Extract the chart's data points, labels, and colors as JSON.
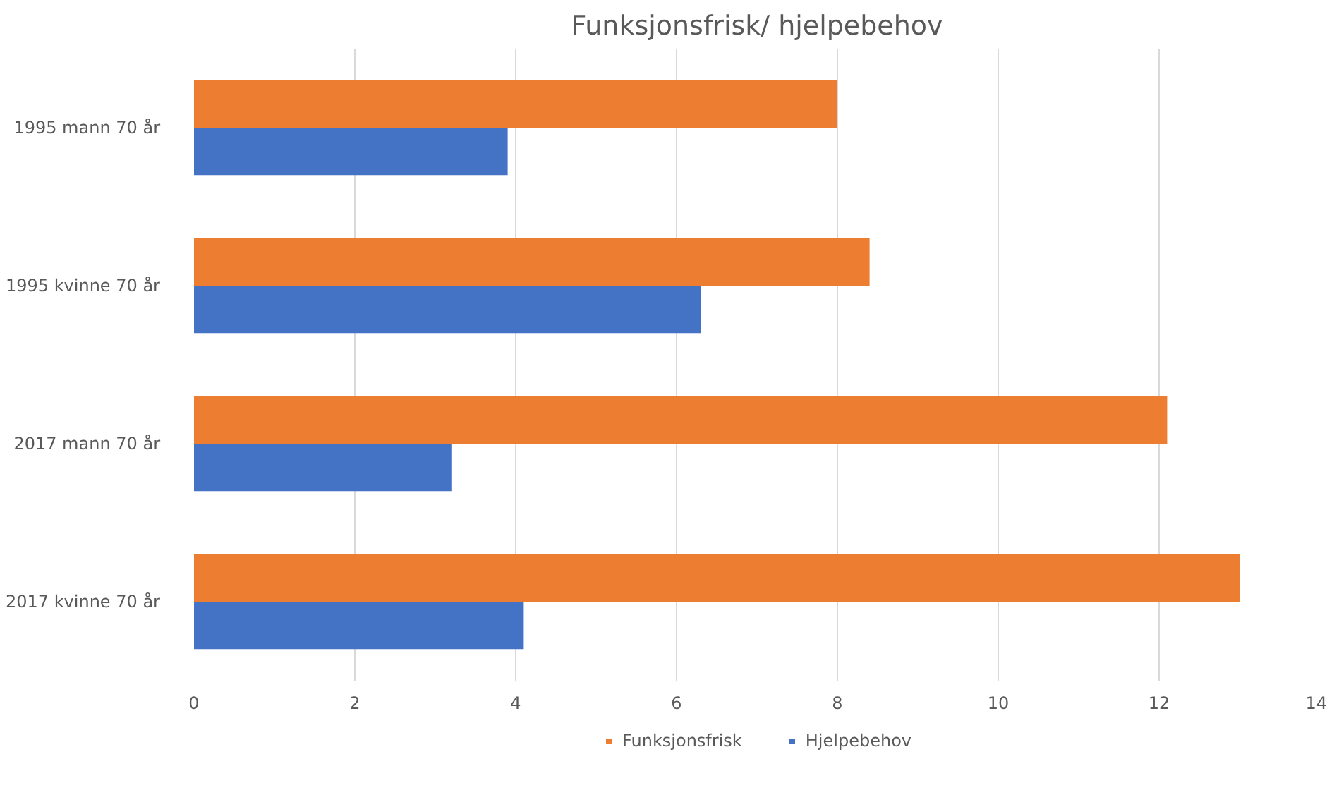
{
  "chart_data": {
    "type": "bar",
    "orientation": "horizontal",
    "title": "Funksjonsfrisk/ hjelpebehov",
    "categories": [
      "1995 mann 70 år",
      "1995 kvinne 70 år",
      "2017 mann 70 år",
      "2017 kvinne 70 år"
    ],
    "series": [
      {
        "name": "Funksjonsfrisk",
        "color": "#ed7d31",
        "values": [
          8.0,
          8.4,
          12.1,
          13.0
        ]
      },
      {
        "name": "Hjelpebehov",
        "color": "#4472c4",
        "values": [
          3.9,
          6.3,
          3.2,
          4.1
        ]
      }
    ],
    "xlim": [
      0,
      14
    ],
    "xticks": [
      0,
      2,
      4,
      6,
      8,
      10,
      12,
      14
    ],
    "grid": "x",
    "legend": "bottom"
  }
}
